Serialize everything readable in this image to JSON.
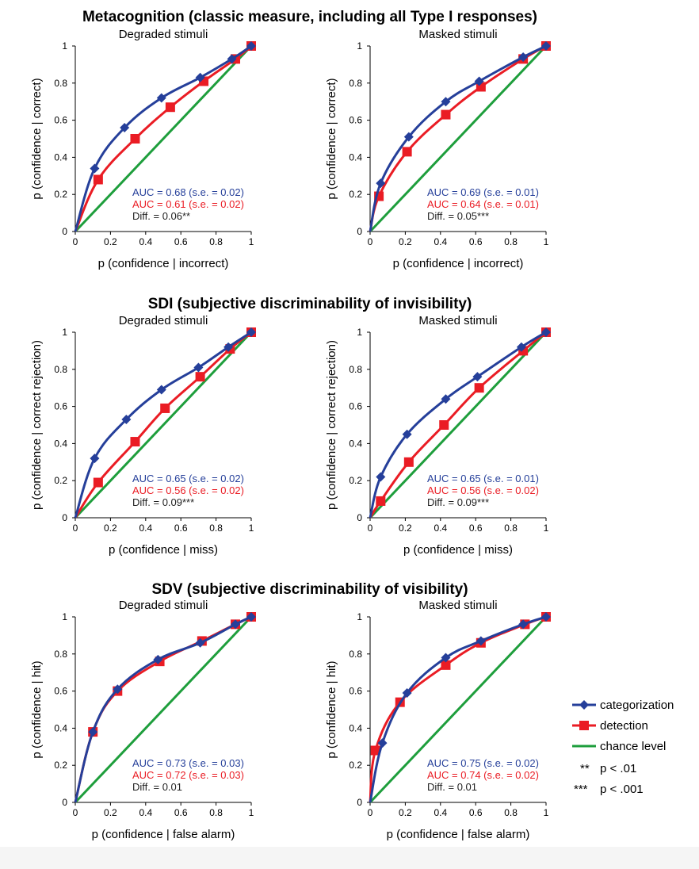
{
  "colors": {
    "categorization": "#253f9a",
    "detection": "#ea1c24",
    "chance": "#1e9e3c",
    "diff": "#222222"
  },
  "sections": [
    {
      "title": "Metacognition (classic measure, including all Type I responses)"
    },
    {
      "title": "SDI (subjective discriminability of invisibility)"
    },
    {
      "title": "SDV (subjective discriminability of visibility)"
    }
  ],
  "legend": {
    "categorization": "categorization",
    "detection": "detection",
    "chance": "chance level",
    "sig2_stars": "**",
    "sig2_text": "p < .01",
    "sig3_stars": "***",
    "sig3_text": "p < .001"
  },
  "chart_data": [
    {
      "type": "line",
      "section": 0,
      "title": "Degraded stimuli",
      "xlabel": "p (confidence | incorrect)",
      "ylabel": "p (confidence | correct)",
      "xlim": [
        0,
        1
      ],
      "ylim": [
        0,
        1
      ],
      "xticks": [
        "0",
        "0.2",
        "0.4",
        "0.6",
        "0.8",
        "1"
      ],
      "yticks": [
        "0",
        "0.2",
        "0.4",
        "0.6",
        "0.8",
        "1"
      ],
      "series": [
        {
          "name": "categorization",
          "marker": "diamond",
          "x": [
            0,
            0.11,
            0.28,
            0.49,
            0.71,
            0.89,
            1
          ],
          "y": [
            0,
            0.34,
            0.56,
            0.72,
            0.83,
            0.93,
            1
          ]
        },
        {
          "name": "detection",
          "marker": "square",
          "x": [
            0,
            0.13,
            0.34,
            0.54,
            0.73,
            0.91,
            1
          ],
          "y": [
            0,
            0.28,
            0.5,
            0.67,
            0.81,
            0.93,
            1
          ]
        },
        {
          "name": "chance level",
          "marker": "none",
          "x": [
            0,
            1
          ],
          "y": [
            0,
            1
          ]
        }
      ],
      "annotations": {
        "categorization": "AUC = 0.68 (s.e. = 0.02)",
        "detection": "AUC = 0.61 (s.e. = 0.02)",
        "diff": "Diff. = 0.06**"
      }
    },
    {
      "type": "line",
      "section": 0,
      "title": "Masked stimuli",
      "xlabel": "p (confidence | incorrect)",
      "ylabel": "p (confidence | correct)",
      "xlim": [
        0,
        1
      ],
      "ylim": [
        0,
        1
      ],
      "xticks": [
        "0",
        "0.2",
        "0.4",
        "0.6",
        "0.8",
        "1"
      ],
      "yticks": [
        "0",
        "0.2",
        "0.4",
        "0.6",
        "0.8",
        "1"
      ],
      "series": [
        {
          "name": "categorization",
          "marker": "diamond",
          "x": [
            0,
            0.06,
            0.22,
            0.43,
            0.62,
            0.87,
            1
          ],
          "y": [
            0,
            0.26,
            0.51,
            0.7,
            0.81,
            0.94,
            1
          ]
        },
        {
          "name": "detection",
          "marker": "square",
          "x": [
            0,
            0.05,
            0.21,
            0.43,
            0.63,
            0.87,
            1
          ],
          "y": [
            0,
            0.19,
            0.43,
            0.63,
            0.78,
            0.93,
            1
          ]
        },
        {
          "name": "chance level",
          "marker": "none",
          "x": [
            0,
            1
          ],
          "y": [
            0,
            1
          ]
        }
      ],
      "annotations": {
        "categorization": "AUC = 0.69 (s.e. = 0.01)",
        "detection": "AUC = 0.64 (s.e. = 0.01)",
        "diff": "Diff. = 0.05***"
      }
    },
    {
      "type": "line",
      "section": 1,
      "title": "Degraded stimuli",
      "xlabel": "p (confidence | miss)",
      "ylabel": "p (confidence | correct rejection)",
      "xlim": [
        0,
        1
      ],
      "ylim": [
        0,
        1
      ],
      "xticks": [
        "0",
        "0.2",
        "0.4",
        "0.6",
        "0.8",
        "1"
      ],
      "yticks": [
        "0",
        "0.2",
        "0.4",
        "0.6",
        "0.8",
        "1"
      ],
      "series": [
        {
          "name": "categorization",
          "marker": "diamond",
          "x": [
            0,
            0.11,
            0.29,
            0.49,
            0.7,
            0.87,
            1
          ],
          "y": [
            0,
            0.32,
            0.53,
            0.69,
            0.81,
            0.92,
            1
          ]
        },
        {
          "name": "detection",
          "marker": "square",
          "x": [
            0,
            0.13,
            0.34,
            0.51,
            0.71,
            0.88,
            1
          ],
          "y": [
            0,
            0.19,
            0.41,
            0.59,
            0.76,
            0.91,
            1
          ]
        },
        {
          "name": "chance level",
          "marker": "none",
          "x": [
            0,
            1
          ],
          "y": [
            0,
            1
          ]
        }
      ],
      "annotations": {
        "categorization": "AUC = 0.65 (s.e. = 0.02)",
        "detection": "AUC = 0.56 (s.e. = 0.02)",
        "diff": "Diff. = 0.09***"
      }
    },
    {
      "type": "line",
      "section": 1,
      "title": "Masked stimuli",
      "xlabel": "p (confidence | miss)",
      "ylabel": "p (confidence | correct rejection)",
      "xlim": [
        0,
        1
      ],
      "ylim": [
        0,
        1
      ],
      "xticks": [
        "0",
        "0.2",
        "0.4",
        "0.6",
        "0.8",
        "1"
      ],
      "yticks": [
        "0",
        "0.2",
        "0.4",
        "0.6",
        "0.8",
        "1"
      ],
      "series": [
        {
          "name": "categorization",
          "marker": "diamond",
          "x": [
            0,
            0.06,
            0.21,
            0.43,
            0.61,
            0.86,
            1
          ],
          "y": [
            0,
            0.22,
            0.45,
            0.64,
            0.76,
            0.92,
            1
          ]
        },
        {
          "name": "detection",
          "marker": "square",
          "x": [
            0,
            0.06,
            0.22,
            0.42,
            0.62,
            0.87,
            1
          ],
          "y": [
            0,
            0.09,
            0.3,
            0.5,
            0.7,
            0.9,
            1
          ]
        },
        {
          "name": "chance level",
          "marker": "none",
          "x": [
            0,
            1
          ],
          "y": [
            0,
            1
          ]
        }
      ],
      "annotations": {
        "categorization": "AUC = 0.65 (s.e. = 0.01)",
        "detection": "AUC = 0.56 (s.e. = 0.02)",
        "diff": "Diff. = 0.09***"
      }
    },
    {
      "type": "line",
      "section": 2,
      "title": "Degraded stimuli",
      "xlabel": "p (confidence | false alarm)",
      "ylabel": "p (confidence | hit)",
      "xlim": [
        0,
        1
      ],
      "ylim": [
        0,
        1
      ],
      "xticks": [
        "0",
        "0.2",
        "0.4",
        "0.6",
        "0.8",
        "1"
      ],
      "yticks": [
        "0",
        "0.2",
        "0.4",
        "0.6",
        "0.8",
        "1"
      ],
      "series": [
        {
          "name": "categorization",
          "marker": "diamond",
          "x": [
            0,
            0.1,
            0.24,
            0.47,
            0.71,
            0.91,
            1
          ],
          "y": [
            0,
            0.38,
            0.61,
            0.77,
            0.86,
            0.96,
            1
          ]
        },
        {
          "name": "detection",
          "marker": "square",
          "x": [
            0,
            0.1,
            0.24,
            0.48,
            0.72,
            0.91,
            1
          ],
          "y": [
            0,
            0.38,
            0.6,
            0.76,
            0.87,
            0.96,
            1
          ]
        },
        {
          "name": "chance level",
          "marker": "none",
          "x": [
            0,
            1
          ],
          "y": [
            0,
            1
          ]
        }
      ],
      "annotations": {
        "categorization": "AUC = 0.73 (s.e. = 0.03)",
        "detection": "AUC = 0.72 (s.e. = 0.03)",
        "diff": "Diff. = 0.01"
      }
    },
    {
      "type": "line",
      "section": 2,
      "title": "Masked stimuli",
      "xlabel": "p (confidence | false alarm)",
      "ylabel": "p (confidence | hit)",
      "xlim": [
        0,
        1
      ],
      "ylim": [
        0,
        1
      ],
      "xticks": [
        "0",
        "0.2",
        "0.4",
        "0.6",
        "0.8",
        "1"
      ],
      "yticks": [
        "0",
        "0.2",
        "0.4",
        "0.6",
        "0.8",
        "1"
      ],
      "series": [
        {
          "name": "categorization",
          "marker": "diamond",
          "x": [
            0,
            0.07,
            0.21,
            0.43,
            0.63,
            0.87,
            1
          ],
          "y": [
            0,
            0.32,
            0.59,
            0.78,
            0.87,
            0.96,
            1
          ]
        },
        {
          "name": "detection",
          "marker": "square",
          "x": [
            0,
            0.03,
            0.17,
            0.43,
            0.63,
            0.88,
            1
          ],
          "y": [
            0,
            0.28,
            0.54,
            0.74,
            0.86,
            0.96,
            1
          ]
        },
        {
          "name": "chance level",
          "marker": "none",
          "x": [
            0,
            1
          ],
          "y": [
            0,
            1
          ]
        }
      ],
      "annotations": {
        "categorization": "AUC = 0.75 (s.e. = 0.02)",
        "detection": "AUC = 0.74 (s.e. = 0.02)",
        "diff": "Diff. = 0.01"
      }
    }
  ]
}
